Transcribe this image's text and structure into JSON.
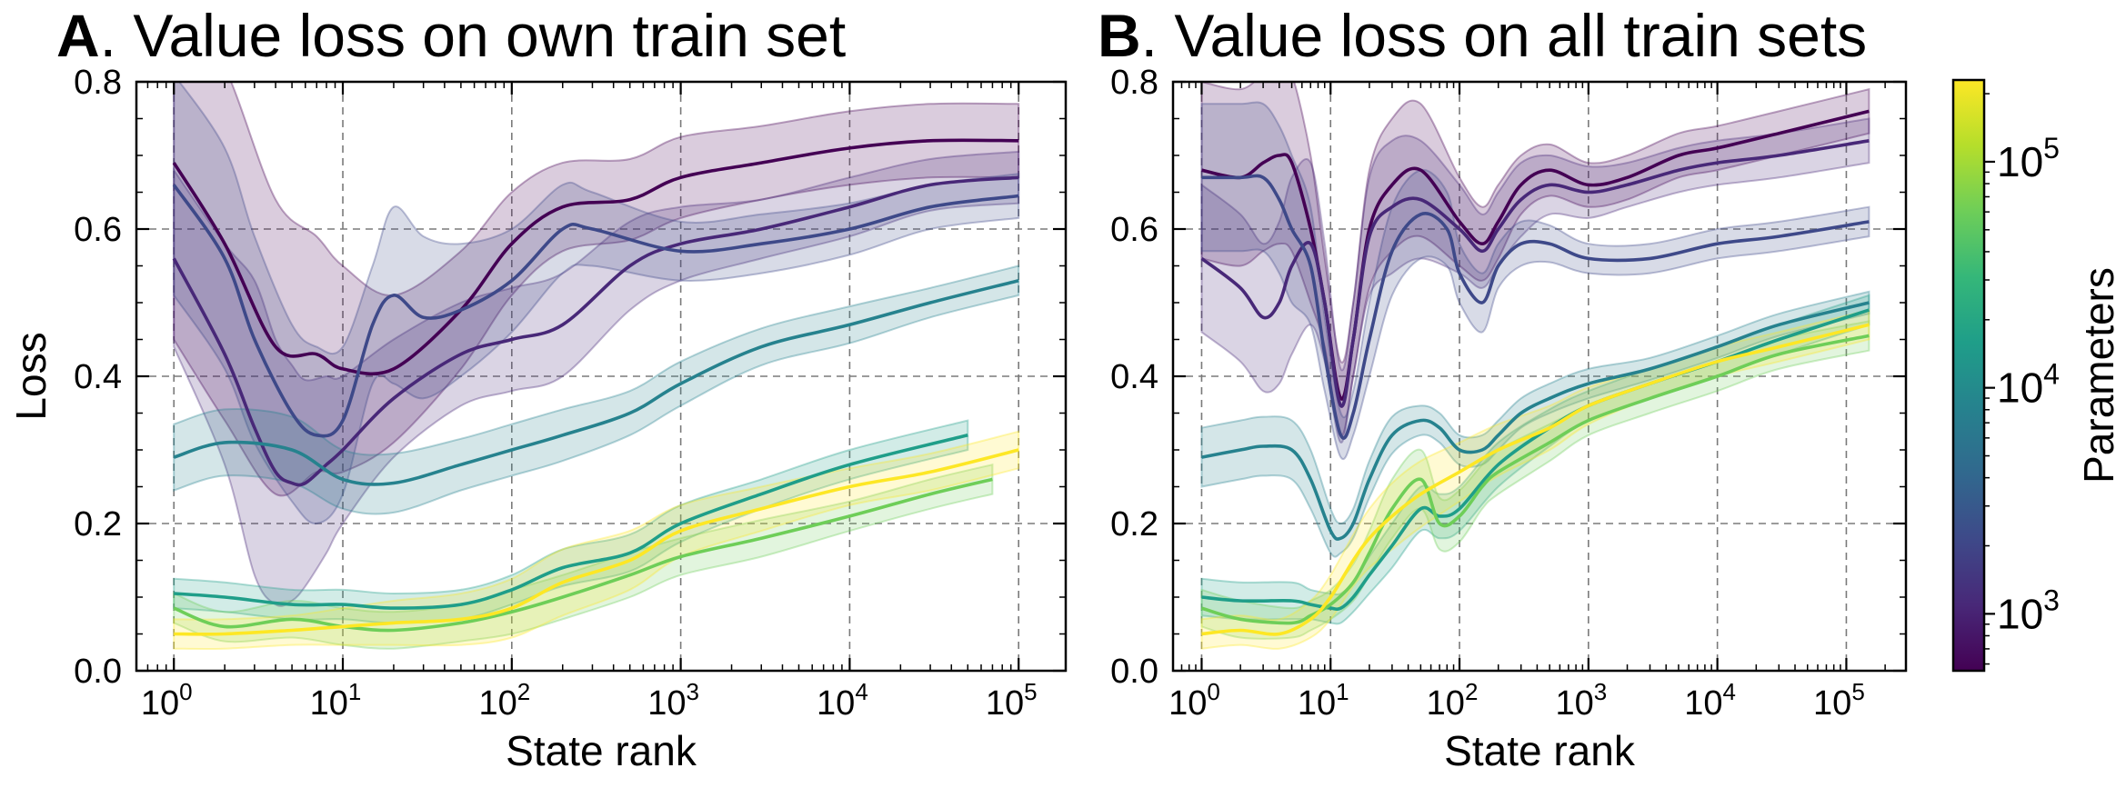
{
  "panels": [
    {
      "letter": "A",
      "title": ". Value loss on own train set"
    },
    {
      "letter": "B",
      "title": ". Value loss on all train sets"
    }
  ],
  "colorbar": {
    "label": "Parameters",
    "ticks": [
      {
        "base": "10",
        "exp": "3"
      },
      {
        "base": "10",
        "exp": "4"
      },
      {
        "base": "10",
        "exp": "5"
      }
    ],
    "colors": [
      "#440154",
      "#482878",
      "#3e4989",
      "#31688e",
      "#26828e",
      "#1f9e89",
      "#35b779",
      "#6ece58",
      "#b5de2b",
      "#fde725"
    ]
  },
  "chart_data": [
    {
      "type": "line",
      "title": "A. Value loss on own train set",
      "xlabel": "State rank",
      "ylabel": "Loss",
      "xscale": "log",
      "xlim": [
        0.6,
        190000
      ],
      "ylim": [
        0.0,
        0.8
      ],
      "xticks": [
        {
          "base": "10",
          "exp": "0"
        },
        {
          "base": "10",
          "exp": "1"
        },
        {
          "base": "10",
          "exp": "2"
        },
        {
          "base": "10",
          "exp": "3"
        },
        {
          "base": "10",
          "exp": "4"
        },
        {
          "base": "10",
          "exp": "5"
        }
      ],
      "yticks": [
        "0.0",
        "0.2",
        "0.4",
        "0.6",
        "0.8"
      ],
      "grid": true,
      "series": [
        {
          "color": "#440154",
          "x": [
            1,
            2,
            4,
            7,
            10,
            20,
            50,
            100,
            200,
            500,
            1000,
            3000,
            10000,
            30000,
            100000
          ],
          "y": [
            0.69,
            0.58,
            0.44,
            0.43,
            0.41,
            0.41,
            0.49,
            0.58,
            0.63,
            0.64,
            0.67,
            0.69,
            0.71,
            0.72,
            0.72
          ],
          "band": [
            0.24,
            0.24,
            0.2,
            0.16,
            0.14,
            0.1,
            0.08,
            0.07,
            0.06,
            0.055,
            0.055,
            0.05,
            0.05,
            0.05,
            0.05
          ]
        },
        {
          "color": "#482878",
          "x": [
            1,
            2,
            3,
            4,
            5,
            6,
            8,
            10,
            20,
            50,
            100,
            200,
            500,
            1000,
            3000,
            10000,
            30000,
            100000
          ],
          "y": [
            0.56,
            0.43,
            0.33,
            0.27,
            0.255,
            0.255,
            0.28,
            0.3,
            0.37,
            0.43,
            0.45,
            0.47,
            0.55,
            0.58,
            0.6,
            0.63,
            0.66,
            0.67
          ],
          "band": [
            0.12,
            0.15,
            0.2,
            0.18,
            0.16,
            0.14,
            0.12,
            0.1,
            0.08,
            0.07,
            0.07,
            0.07,
            0.06,
            0.05,
            0.04,
            0.04,
            0.035,
            0.035
          ]
        },
        {
          "color": "#3e4989",
          "x": [
            1,
            2,
            3,
            5,
            7,
            10,
            15,
            20,
            30,
            50,
            100,
            200,
            300,
            1000,
            3000,
            10000,
            30000,
            100000
          ],
          "y": [
            0.66,
            0.56,
            0.45,
            0.35,
            0.32,
            0.34,
            0.47,
            0.51,
            0.48,
            0.49,
            0.53,
            0.6,
            0.6,
            0.57,
            0.58,
            0.6,
            0.63,
            0.645
          ],
          "band": [
            0.15,
            0.15,
            0.14,
            0.12,
            0.12,
            0.1,
            0.08,
            0.12,
            0.11,
            0.09,
            0.07,
            0.06,
            0.05,
            0.04,
            0.04,
            0.035,
            0.03,
            0.03
          ]
        },
        {
          "color": "#26828e",
          "x": [
            1,
            2,
            5,
            10,
            20,
            50,
            100,
            200,
            500,
            1000,
            3000,
            10000,
            30000,
            100000
          ],
          "y": [
            0.29,
            0.31,
            0.3,
            0.26,
            0.255,
            0.28,
            0.3,
            0.32,
            0.35,
            0.39,
            0.44,
            0.47,
            0.5,
            0.53
          ],
          "band": [
            0.045,
            0.045,
            0.045,
            0.04,
            0.04,
            0.035,
            0.035,
            0.035,
            0.03,
            0.03,
            0.025,
            0.025,
            0.02,
            0.02
          ]
        },
        {
          "color": "#1f9e89",
          "x": [
            1,
            2,
            5,
            10,
            20,
            50,
            100,
            200,
            500,
            1000,
            3000,
            10000,
            50000
          ],
          "y": [
            0.105,
            0.1,
            0.09,
            0.09,
            0.085,
            0.09,
            0.11,
            0.14,
            0.16,
            0.2,
            0.24,
            0.28,
            0.32
          ],
          "band": [
            0.02,
            0.02,
            0.02,
            0.02,
            0.02,
            0.02,
            0.02,
            0.025,
            0.025,
            0.025,
            0.02,
            0.02,
            0.02
          ]
        },
        {
          "color": "#6ece58",
          "x": [
            1,
            2,
            5,
            10,
            20,
            50,
            100,
            200,
            500,
            1000,
            3000,
            10000,
            30000,
            70000
          ],
          "y": [
            0.085,
            0.06,
            0.07,
            0.06,
            0.055,
            0.065,
            0.08,
            0.1,
            0.13,
            0.155,
            0.18,
            0.21,
            0.24,
            0.26
          ],
          "band": [
            0.02,
            0.02,
            0.025,
            0.025,
            0.025,
            0.025,
            0.03,
            0.03,
            0.03,
            0.025,
            0.025,
            0.02,
            0.02,
            0.02
          ]
        },
        {
          "color": "#fde725",
          "x": [
            1,
            2,
            5,
            10,
            20,
            50,
            100,
            200,
            500,
            1000,
            3000,
            10000,
            30000,
            100000
          ],
          "y": [
            0.05,
            0.05,
            0.055,
            0.06,
            0.065,
            0.07,
            0.085,
            0.12,
            0.15,
            0.19,
            0.22,
            0.25,
            0.27,
            0.3
          ],
          "band": [
            0.02,
            0.02,
            0.02,
            0.025,
            0.03,
            0.035,
            0.04,
            0.045,
            0.04,
            0.035,
            0.03,
            0.025,
            0.025,
            0.025
          ]
        }
      ]
    },
    {
      "type": "line",
      "title": "B. Value loss on all train sets",
      "xlabel": "State rank",
      "ylabel": "",
      "xscale": "log",
      "xlim": [
        0.6,
        290000
      ],
      "ylim": [
        0.0,
        0.8
      ],
      "xticks": [
        {
          "base": "10",
          "exp": "0"
        },
        {
          "base": "10",
          "exp": "1"
        },
        {
          "base": "10",
          "exp": "2"
        },
        {
          "base": "10",
          "exp": "3"
        },
        {
          "base": "10",
          "exp": "4"
        },
        {
          "base": "10",
          "exp": "5"
        }
      ],
      "yticks": [
        "0.0",
        "0.2",
        "0.4",
        "0.6",
        "0.8"
      ],
      "grid": true,
      "series": [
        {
          "color": "#440154",
          "x": [
            1,
            2,
            3,
            4,
            5,
            7,
            9,
            12,
            15,
            20,
            30,
            50,
            100,
            150,
            200,
            300,
            500,
            1000,
            2000,
            5000,
            10000,
            30000,
            150000
          ],
          "y": [
            0.68,
            0.67,
            0.69,
            0.7,
            0.69,
            0.6,
            0.5,
            0.37,
            0.45,
            0.6,
            0.66,
            0.68,
            0.61,
            0.58,
            0.61,
            0.66,
            0.68,
            0.66,
            0.67,
            0.7,
            0.71,
            0.73,
            0.76
          ],
          "band": [
            0.12,
            0.12,
            0.12,
            0.12,
            0.12,
            0.1,
            0.06,
            0.05,
            0.05,
            0.08,
            0.09,
            0.09,
            0.06,
            0.05,
            0.05,
            0.04,
            0.035,
            0.03,
            0.03,
            0.03,
            0.03,
            0.03,
            0.03
          ]
        },
        {
          "color": "#482878",
          "x": [
            1,
            2,
            3,
            4,
            5,
            7,
            9,
            12,
            15,
            20,
            30,
            50,
            100,
            150,
            200,
            300,
            500,
            1000,
            2000,
            5000,
            10000,
            30000,
            150000
          ],
          "y": [
            0.56,
            0.52,
            0.48,
            0.5,
            0.55,
            0.58,
            0.5,
            0.36,
            0.45,
            0.59,
            0.63,
            0.64,
            0.6,
            0.57,
            0.6,
            0.64,
            0.66,
            0.65,
            0.66,
            0.68,
            0.69,
            0.7,
            0.72
          ],
          "band": [
            0.1,
            0.1,
            0.1,
            0.11,
            0.12,
            0.11,
            0.08,
            0.05,
            0.05,
            0.08,
            0.09,
            0.08,
            0.06,
            0.05,
            0.05,
            0.05,
            0.04,
            0.035,
            0.03,
            0.03,
            0.03,
            0.03,
            0.03
          ]
        },
        {
          "color": "#3e4989",
          "x": [
            1,
            2,
            3,
            4,
            5,
            7,
            9,
            12,
            15,
            20,
            30,
            50,
            80,
            100,
            150,
            200,
            300,
            500,
            1000,
            3000,
            10000,
            30000,
            150000
          ],
          "y": [
            0.67,
            0.67,
            0.67,
            0.64,
            0.6,
            0.55,
            0.43,
            0.32,
            0.35,
            0.45,
            0.57,
            0.62,
            0.6,
            0.54,
            0.5,
            0.55,
            0.58,
            0.58,
            0.56,
            0.56,
            0.58,
            0.59,
            0.61
          ],
          "band": [
            0.1,
            0.1,
            0.1,
            0.1,
            0.1,
            0.08,
            0.05,
            0.03,
            0.03,
            0.05,
            0.06,
            0.06,
            0.05,
            0.04,
            0.04,
            0.03,
            0.03,
            0.025,
            0.02,
            0.02,
            0.02,
            0.02,
            0.02
          ]
        },
        {
          "color": "#26828e",
          "x": [
            1,
            2,
            3,
            5,
            7,
            10,
            12,
            15,
            20,
            30,
            50,
            70,
            100,
            150,
            200,
            300,
            500,
            1000,
            3000,
            10000,
            30000,
            150000
          ],
          "y": [
            0.29,
            0.3,
            0.305,
            0.3,
            0.26,
            0.19,
            0.18,
            0.2,
            0.26,
            0.32,
            0.34,
            0.33,
            0.3,
            0.3,
            0.32,
            0.35,
            0.37,
            0.39,
            0.41,
            0.44,
            0.47,
            0.5
          ],
          "band": [
            0.04,
            0.04,
            0.04,
            0.04,
            0.04,
            0.03,
            0.02,
            0.02,
            0.025,
            0.025,
            0.02,
            0.02,
            0.02,
            0.02,
            0.02,
            0.02,
            0.02,
            0.02,
            0.015,
            0.015,
            0.015,
            0.015
          ]
        },
        {
          "color": "#1f9e89",
          "x": [
            1,
            2,
            5,
            7,
            10,
            12,
            15,
            20,
            30,
            50,
            70,
            100,
            200,
            500,
            1000,
            3000,
            10000,
            30000,
            150000
          ],
          "y": [
            0.1,
            0.095,
            0.095,
            0.09,
            0.085,
            0.085,
            0.1,
            0.13,
            0.17,
            0.22,
            0.21,
            0.22,
            0.28,
            0.33,
            0.36,
            0.39,
            0.42,
            0.45,
            0.49
          ],
          "band": [
            0.025,
            0.025,
            0.025,
            0.02,
            0.02,
            0.02,
            0.02,
            0.025,
            0.03,
            0.03,
            0.03,
            0.03,
            0.03,
            0.025,
            0.02,
            0.02,
            0.02,
            0.02,
            0.02
          ]
        },
        {
          "color": "#6ece58",
          "x": [
            1,
            2,
            5,
            7,
            10,
            15,
            20,
            30,
            50,
            70,
            100,
            150,
            200,
            500,
            1000,
            3000,
            10000,
            30000,
            150000
          ],
          "y": [
            0.085,
            0.07,
            0.065,
            0.075,
            0.09,
            0.12,
            0.16,
            0.22,
            0.26,
            0.2,
            0.21,
            0.25,
            0.27,
            0.31,
            0.34,
            0.37,
            0.4,
            0.43,
            0.455
          ],
          "band": [
            0.025,
            0.025,
            0.02,
            0.02,
            0.02,
            0.025,
            0.03,
            0.04,
            0.04,
            0.035,
            0.035,
            0.03,
            0.03,
            0.025,
            0.02,
            0.02,
            0.02,
            0.02,
            0.02
          ]
        },
        {
          "color": "#fde725",
          "x": [
            1,
            2,
            4,
            7,
            10,
            15,
            20,
            30,
            50,
            100,
            200,
            500,
            1000,
            3000,
            10000,
            30000,
            150000
          ],
          "y": [
            0.05,
            0.055,
            0.05,
            0.07,
            0.1,
            0.15,
            0.18,
            0.21,
            0.24,
            0.27,
            0.3,
            0.33,
            0.36,
            0.39,
            0.42,
            0.44,
            0.47
          ],
          "band": [
            0.02,
            0.02,
            0.02,
            0.025,
            0.03,
            0.035,
            0.04,
            0.045,
            0.045,
            0.04,
            0.035,
            0.03,
            0.025,
            0.02,
            0.02,
            0.02,
            0.02
          ]
        }
      ]
    }
  ]
}
